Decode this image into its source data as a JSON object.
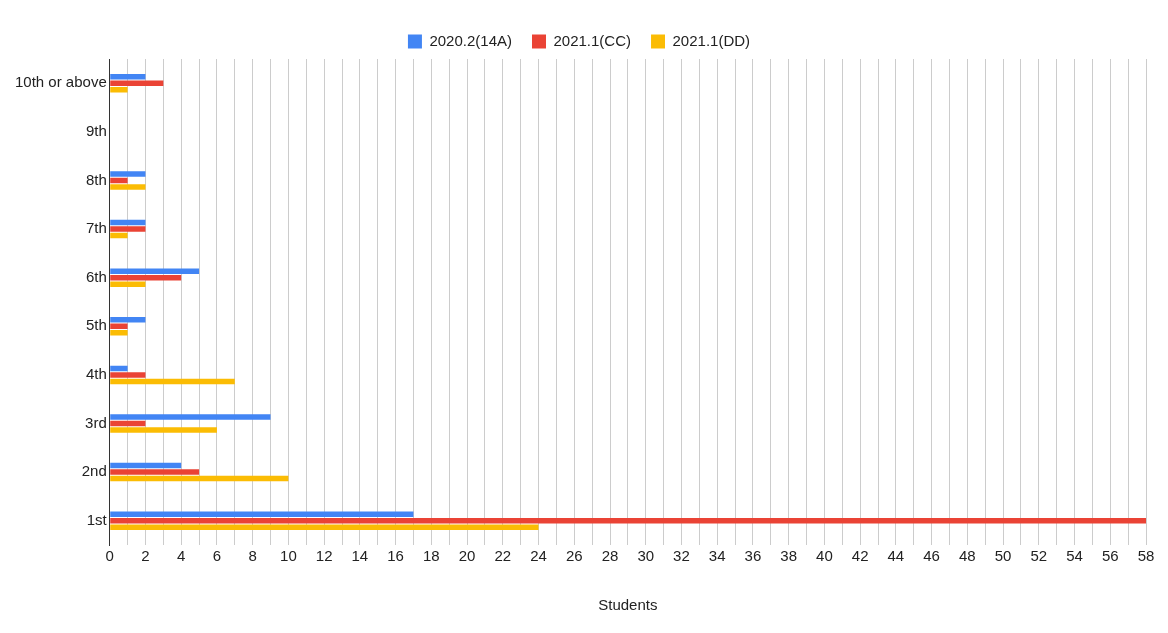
{
  "chart_data": {
    "type": "bar",
    "orientation": "horizontal",
    "xlabel": "Students",
    "categories": [
      "10th or above",
      "9th",
      "8th",
      "7th",
      "6th",
      "5th",
      "4th",
      "3rd",
      "2nd",
      "1st"
    ],
    "series": [
      {
        "name": "2020.2(14A)",
        "color": "#4285f4",
        "values": [
          2,
          0,
          2,
          2,
          5,
          2,
          1,
          9,
          4,
          17
        ]
      },
      {
        "name": "2021.1(CC)",
        "color": "#ea4335",
        "values": [
          3,
          0,
          1,
          2,
          4,
          1,
          2,
          2,
          5,
          58
        ]
      },
      {
        "name": "2021.1(DD)",
        "color": "#fbbc04",
        "values": [
          1,
          0,
          2,
          1,
          2,
          1,
          7,
          6,
          10,
          24
        ]
      }
    ],
    "xlim": [
      0,
      58
    ],
    "xticks": [
      0,
      {
        "value": 1,
        "label": null
      },
      2,
      {
        "value": 3,
        "label": null
      },
      4,
      {
        "value": 5,
        "label": null
      },
      6,
      {
        "value": 7,
        "label": null
      },
      8,
      {
        "value": 9,
        "label": null
      },
      10,
      {
        "value": 11,
        "label": null
      },
      12,
      {
        "value": 13,
        "label": null
      },
      14,
      {
        "value": 15,
        "label": null
      },
      16,
      {
        "value": 17,
        "label": null
      },
      18,
      {
        "value": 19,
        "label": null
      },
      20,
      {
        "value": 21,
        "label": null
      },
      22,
      {
        "value": 23,
        "label": null
      },
      24,
      {
        "value": 25,
        "label": null
      },
      26,
      {
        "value": 27,
        "label": null
      },
      28,
      {
        "value": 29,
        "label": null
      },
      30,
      {
        "value": 31,
        "label": null
      },
      32,
      {
        "value": 33,
        "label": null
      },
      34,
      {
        "value": 35,
        "label": null
      },
      36,
      {
        "value": 37,
        "label": null
      },
      38,
      {
        "value": 39,
        "label": null
      },
      40,
      {
        "value": 41,
        "label": null
      },
      42,
      {
        "value": 43,
        "label": null
      },
      44,
      {
        "value": 45,
        "label": null
      },
      46,
      {
        "value": 47,
        "label": null
      },
      48,
      {
        "value": 49,
        "label": null
      },
      50,
      {
        "value": 51,
        "label": null
      },
      52,
      {
        "value": 53,
        "label": null
      },
      54,
      {
        "value": 55,
        "label": null
      },
      56,
      {
        "value": 57,
        "label": null
      },
      58
    ],
    "grid": "x",
    "legend": "top"
  }
}
